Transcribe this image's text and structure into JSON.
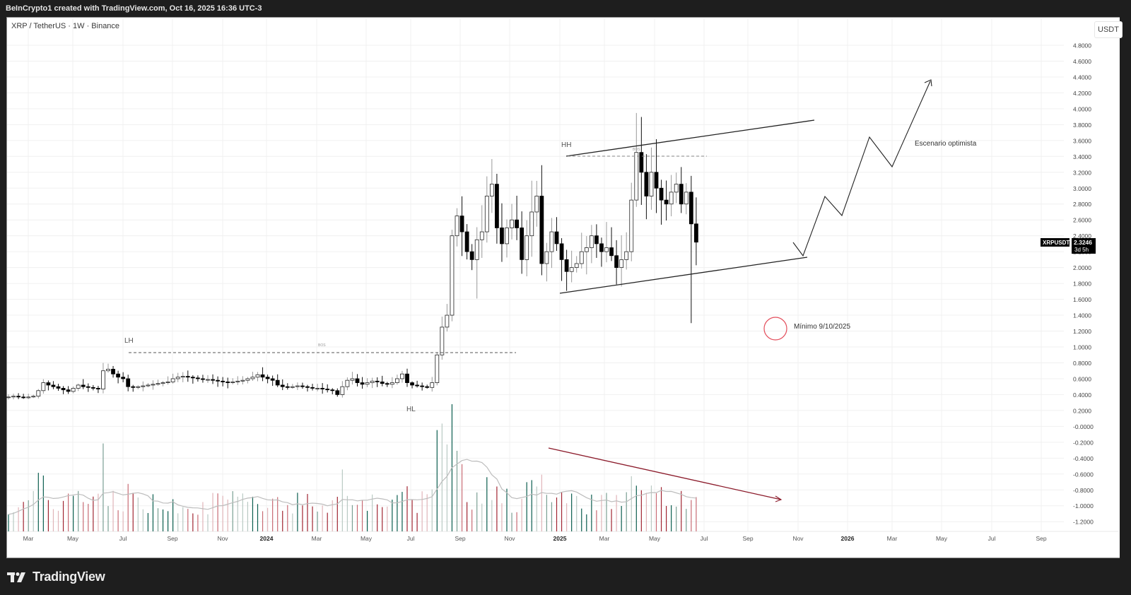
{
  "header": {
    "attribution": "BeInCrypto1 created with TradingView.com, Oct 16, 2025 16:36 UTC-3",
    "symbol_line": "XRP / TetherUS · 1W · Binance",
    "currency": "USDT"
  },
  "price_badge": {
    "ticker": "XRPUSDT",
    "price": "2.3246",
    "countdown": "3d 5h"
  },
  "annotations": {
    "lh": "LH",
    "hl": "HL",
    "hh": "HH",
    "bos_1": "BOS",
    "bos_2": "BOS",
    "minimum": "Mínimo 9/10/2025",
    "scenario": "Escenario optimista"
  },
  "footer": {
    "brand": "TradingView"
  },
  "colors": {
    "up_volume": "#0b5e4f",
    "down_volume": "#a12532",
    "volume_ma": "#bdbdbd",
    "trend_line": "#8b1a2a",
    "circle": "#e34c5a"
  },
  "chart_data": {
    "type": "candlestick",
    "title": "XRP / TetherUS · 1W · Binance",
    "ylabel": "USDT",
    "y_ticks": [
      "4.8000",
      "4.6000",
      "4.4000",
      "4.2000",
      "4.0000",
      "3.8000",
      "3.6000",
      "3.4000",
      "3.2000",
      "3.0000",
      "2.8000",
      "2.6000",
      "2.4000",
      "2.2000",
      "2.0000",
      "1.8000",
      "1.6000",
      "1.4000",
      "1.2000",
      "1.0000",
      "0.8000",
      "0.6000",
      "0.4000",
      "0.2000",
      "-0.0000",
      "-0.2000",
      "-0.4000",
      "-0.6000",
      "-0.8000",
      "-1.0000",
      "-1.2000"
    ],
    "x_ticks": [
      "Mar",
      "May",
      "Jul",
      "Sep",
      "Nov",
      "2024",
      "Mar",
      "May",
      "Jul",
      "Sep",
      "Nov",
      "2025",
      "Mar",
      "May",
      "Jul",
      "Sep",
      "Nov",
      "2026",
      "Mar",
      "May",
      "Jul",
      "Sep"
    ],
    "ylim": [
      -1.3,
      4.9
    ],
    "grid": true,
    "last_price": 2.3246,
    "key_levels": {
      "LH_2023_Jul": 0.93,
      "HL_2024_Jul": 0.38,
      "HH_2024_Dec": 3.4,
      "high_2025_Jul": 3.66,
      "low_2025_Oct_10": 1.3,
      "low_2025_Apr": 1.61
    },
    "channel": {
      "upper": [
        {
          "x": "2024-12",
          "y": 3.4
        },
        {
          "x": "2025-11",
          "y": 3.85
        }
      ],
      "lower": [
        {
          "x": "2024-12",
          "y": 1.68
        },
        {
          "x": "2025-11",
          "y": 2.11
        }
      ]
    },
    "projection_path": [
      2.28,
      2.16,
      2.9,
      2.66,
      3.65,
      3.27,
      4.37
    ],
    "weekly_closes_approx": [
      0.37,
      0.38,
      0.37,
      0.36,
      0.37,
      0.38,
      0.45,
      0.55,
      0.52,
      0.5,
      0.48,
      0.46,
      0.44,
      0.48,
      0.52,
      0.5,
      0.49,
      0.48,
      0.47,
      0.7,
      0.72,
      0.66,
      0.62,
      0.6,
      0.5,
      0.49,
      0.5,
      0.51,
      0.52,
      0.53,
      0.54,
      0.55,
      0.56,
      0.6,
      0.62,
      0.63,
      0.62,
      0.61,
      0.6,
      0.59,
      0.59,
      0.58,
      0.57,
      0.56,
      0.55,
      0.56,
      0.57,
      0.58,
      0.6,
      0.62,
      0.65,
      0.62,
      0.6,
      0.58,
      0.52,
      0.5,
      0.49,
      0.5,
      0.51,
      0.5,
      0.49,
      0.48,
      0.48,
      0.47,
      0.46,
      0.45,
      0.4,
      0.5,
      0.58,
      0.6,
      0.55,
      0.53,
      0.55,
      0.57,
      0.56,
      0.54,
      0.53,
      0.55,
      0.6,
      0.66,
      0.55,
      0.52,
      0.51,
      0.5,
      0.49,
      0.55,
      0.9,
      1.25,
      1.4,
      2.4,
      2.65,
      2.45,
      2.2,
      2.1,
      2.35,
      2.45,
      2.9,
      3.05,
      2.5,
      2.3,
      2.5,
      2.6,
      2.5,
      2.1,
      2.4,
      2.7,
      2.9,
      2.05,
      2.2,
      2.45,
      2.3,
      2.1,
      1.95,
      2.0,
      2.05,
      2.2,
      2.25,
      2.4,
      2.3,
      2.2,
      2.25,
      2.15,
      2.0,
      2.1,
      2.2,
      2.85,
      3.45,
      3.2,
      2.9,
      3.2,
      3.0,
      2.85,
      2.8,
      2.95,
      3.05,
      2.8,
      2.95,
      2.55,
      2.32
    ],
    "volume_panel": {
      "series": [
        "Volume (up/down colored)",
        "Volume MA"
      ],
      "trend": "declining since Nov 2024 (drawn red trendline)"
    }
  }
}
